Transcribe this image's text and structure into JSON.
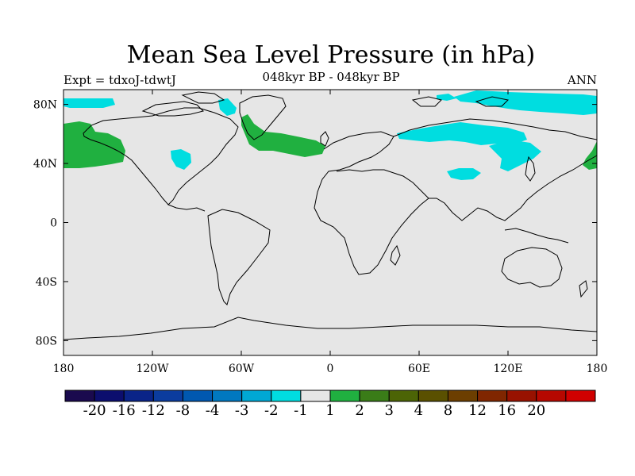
{
  "title": "Mean Sea Level Pressure (in hPa)",
  "subtitle": "048kyr BP - 048kyr BP",
  "left_label": "Expt = tdxoJ-tdwtJ",
  "right_label": "ANN",
  "lat_ticks": [
    {
      "value": 80,
      "label": "80N"
    },
    {
      "value": 40,
      "label": "40N"
    },
    {
      "value": 0,
      "label": "0"
    },
    {
      "value": -40,
      "label": "40S"
    },
    {
      "value": -80,
      "label": "80S"
    }
  ],
  "lon_ticks": [
    {
      "value": -180,
      "label": "180"
    },
    {
      "value": -120,
      "label": "120W"
    },
    {
      "value": -60,
      "label": "60W"
    },
    {
      "value": 0,
      "label": "0"
    },
    {
      "value": 60,
      "label": "60E"
    },
    {
      "value": 120,
      "label": "120E"
    },
    {
      "value": 180,
      "label": "180"
    }
  ],
  "colorbar": {
    "colors": [
      "#1a0a4e",
      "#0c0e6e",
      "#0a2488",
      "#0b3c9e",
      "#0058b0",
      "#0078c0",
      "#00a8d4",
      "#00dde0",
      "#e6e6e6",
      "#20b040",
      "#3a7c18",
      "#4c6406",
      "#5a5000",
      "#6c3e00",
      "#802600",
      "#981200",
      "#b60800",
      "#d00000"
    ],
    "labels": [
      "-20",
      "-16",
      "-12",
      "-8",
      "-4",
      "-3",
      "-2",
      "-1",
      "1",
      "2",
      "3",
      "4",
      "8",
      "12",
      "16",
      "20"
    ]
  },
  "colors": {
    "ocean_fill": "#e6e6e6",
    "positive_1_2": "#20b040",
    "negative_1_2": "#00dde0"
  }
}
